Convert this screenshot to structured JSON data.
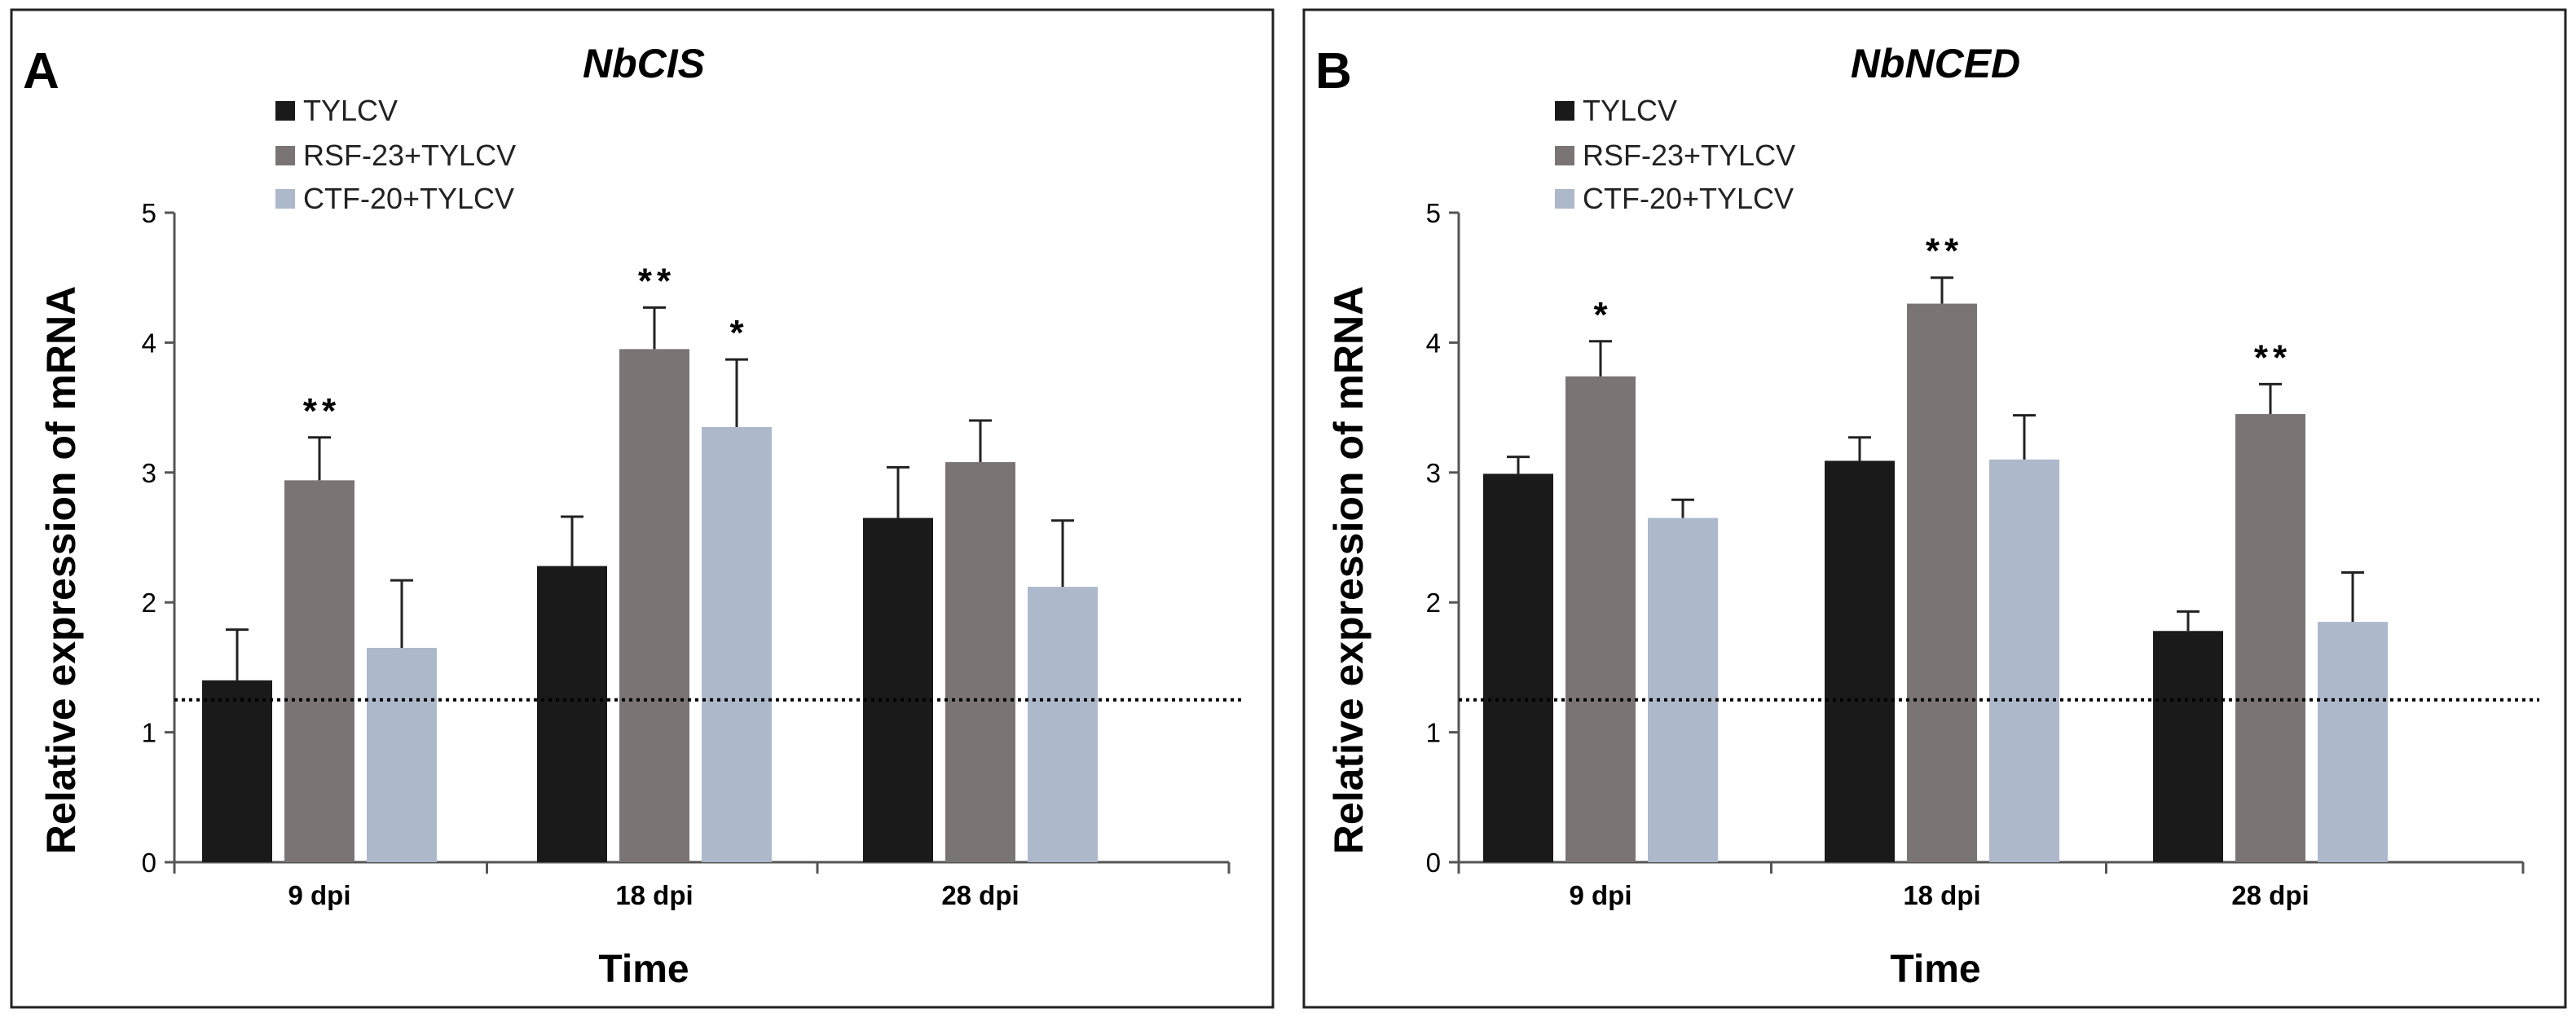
{
  "chart_data": [
    {
      "type": "bar",
      "panel": "A",
      "title": "NbCIS",
      "xlabel": "Time",
      "ylabel": "Relative expression of mRNA",
      "ylim": [
        0,
        5
      ],
      "yticks": [
        "0",
        "1",
        "2",
        "3",
        "4",
        "5"
      ],
      "categories": [
        "9 dpi",
        "18 dpi",
        "28 dpi"
      ],
      "reference_line": 1.25,
      "series": [
        {
          "name": "TYLCV",
          "color": "#1a1a1a",
          "values": [
            1.4,
            2.28,
            2.65
          ],
          "errors": [
            0.39,
            0.38,
            0.39
          ],
          "significance": [
            "",
            "",
            ""
          ]
        },
        {
          "name": "RSF-23+TYLCV",
          "color": "#7a7574",
          "values": [
            2.94,
            3.95,
            3.08
          ],
          "errors": [
            0.33,
            0.32,
            0.32
          ],
          "significance": [
            "**",
            "**",
            ""
          ]
        },
        {
          "name": "CTF-20+TYLCV",
          "color": "#adb9cb",
          "values": [
            1.65,
            3.35,
            2.12
          ],
          "errors": [
            0.52,
            0.52,
            0.51
          ],
          "significance": [
            "",
            "*",
            ""
          ]
        }
      ]
    },
    {
      "type": "bar",
      "panel": "B",
      "title": "NbNCED",
      "xlabel": "Time",
      "ylabel": "Relative expression of mRNA",
      "ylim": [
        0,
        5
      ],
      "yticks": [
        "0",
        "1",
        "2",
        "3",
        "4",
        "5"
      ],
      "categories": [
        "9 dpi",
        "18 dpi",
        "28 dpi"
      ],
      "reference_line": 1.25,
      "series": [
        {
          "name": "TYLCV",
          "color": "#1a1a1a",
          "values": [
            2.99,
            3.09,
            1.78
          ],
          "errors": [
            0.13,
            0.18,
            0.15
          ],
          "significance": [
            "",
            "",
            ""
          ]
        },
        {
          "name": "RSF-23+TYLCV",
          "color": "#7a7574",
          "values": [
            3.74,
            4.3,
            3.45
          ],
          "errors": [
            0.27,
            0.2,
            0.23
          ],
          "significance": [
            "*",
            "**",
            "**"
          ]
        },
        {
          "name": "CTF-20+TYLCV",
          "color": "#adb9cb",
          "values": [
            2.65,
            3.1,
            1.85
          ],
          "errors": [
            0.14,
            0.34,
            0.38
          ],
          "significance": [
            "",
            "",
            ""
          ]
        }
      ]
    }
  ]
}
